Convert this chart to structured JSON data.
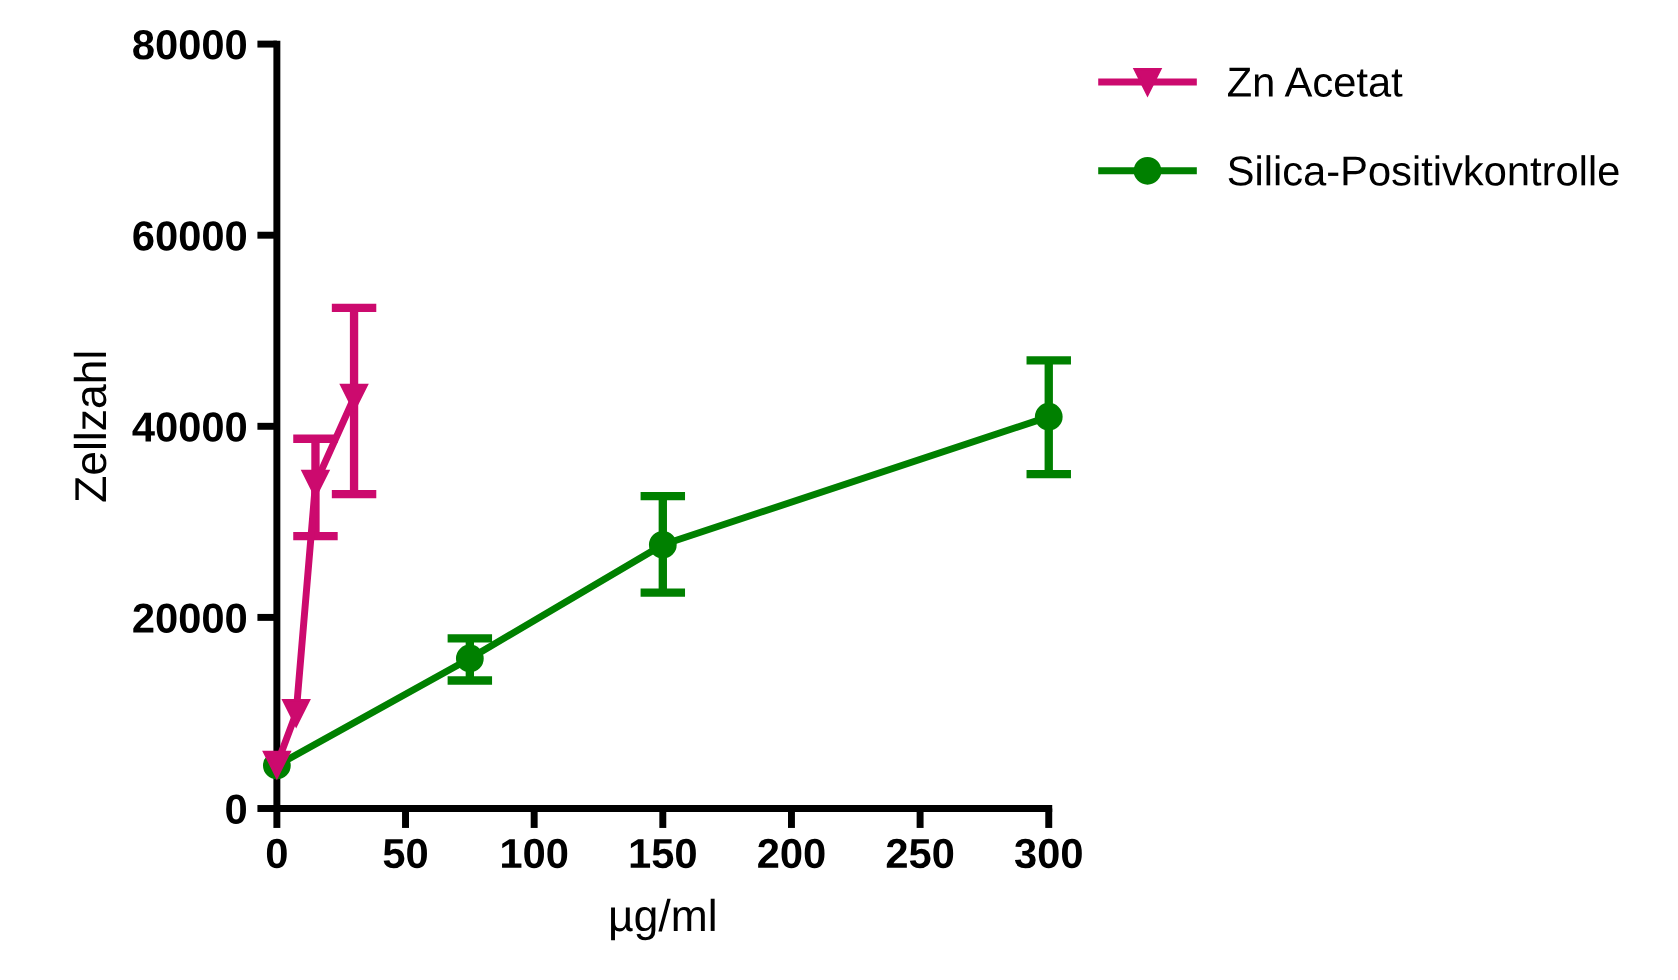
{
  "chart_data": {
    "type": "line",
    "xlabel": "µg/ml",
    "ylabel": "Zellzahl",
    "xlim": [
      0,
      300
    ],
    "xticks": [
      0,
      50,
      100,
      150,
      200,
      250,
      300
    ],
    "ylim": [
      0,
      80000
    ],
    "yticks": [
      0,
      20000,
      40000,
      60000,
      80000
    ],
    "grid": false,
    "legend": "top right",
    "series": [
      {
        "name": "Zn Acetat",
        "color": "#cc0a6e",
        "marker": "triangle",
        "x": [
          0,
          7.5,
          15,
          30
        ],
        "values": [
          4600,
          10000,
          34000,
          43000
        ],
        "errors": [
          null,
          null,
          [
            28500,
            38700
          ],
          [
            32900,
            52400
          ]
        ]
      },
      {
        "name": "Silica-Positivkontrolle",
        "color": "#008000",
        "marker": "circle",
        "x": [
          0,
          75,
          150,
          300
        ],
        "values": [
          4500,
          15700,
          27600,
          41000
        ],
        "errors": [
          null,
          [
            13400,
            17800
          ],
          [
            22600,
            32700
          ],
          [
            35000,
            46900
          ]
        ]
      }
    ]
  }
}
